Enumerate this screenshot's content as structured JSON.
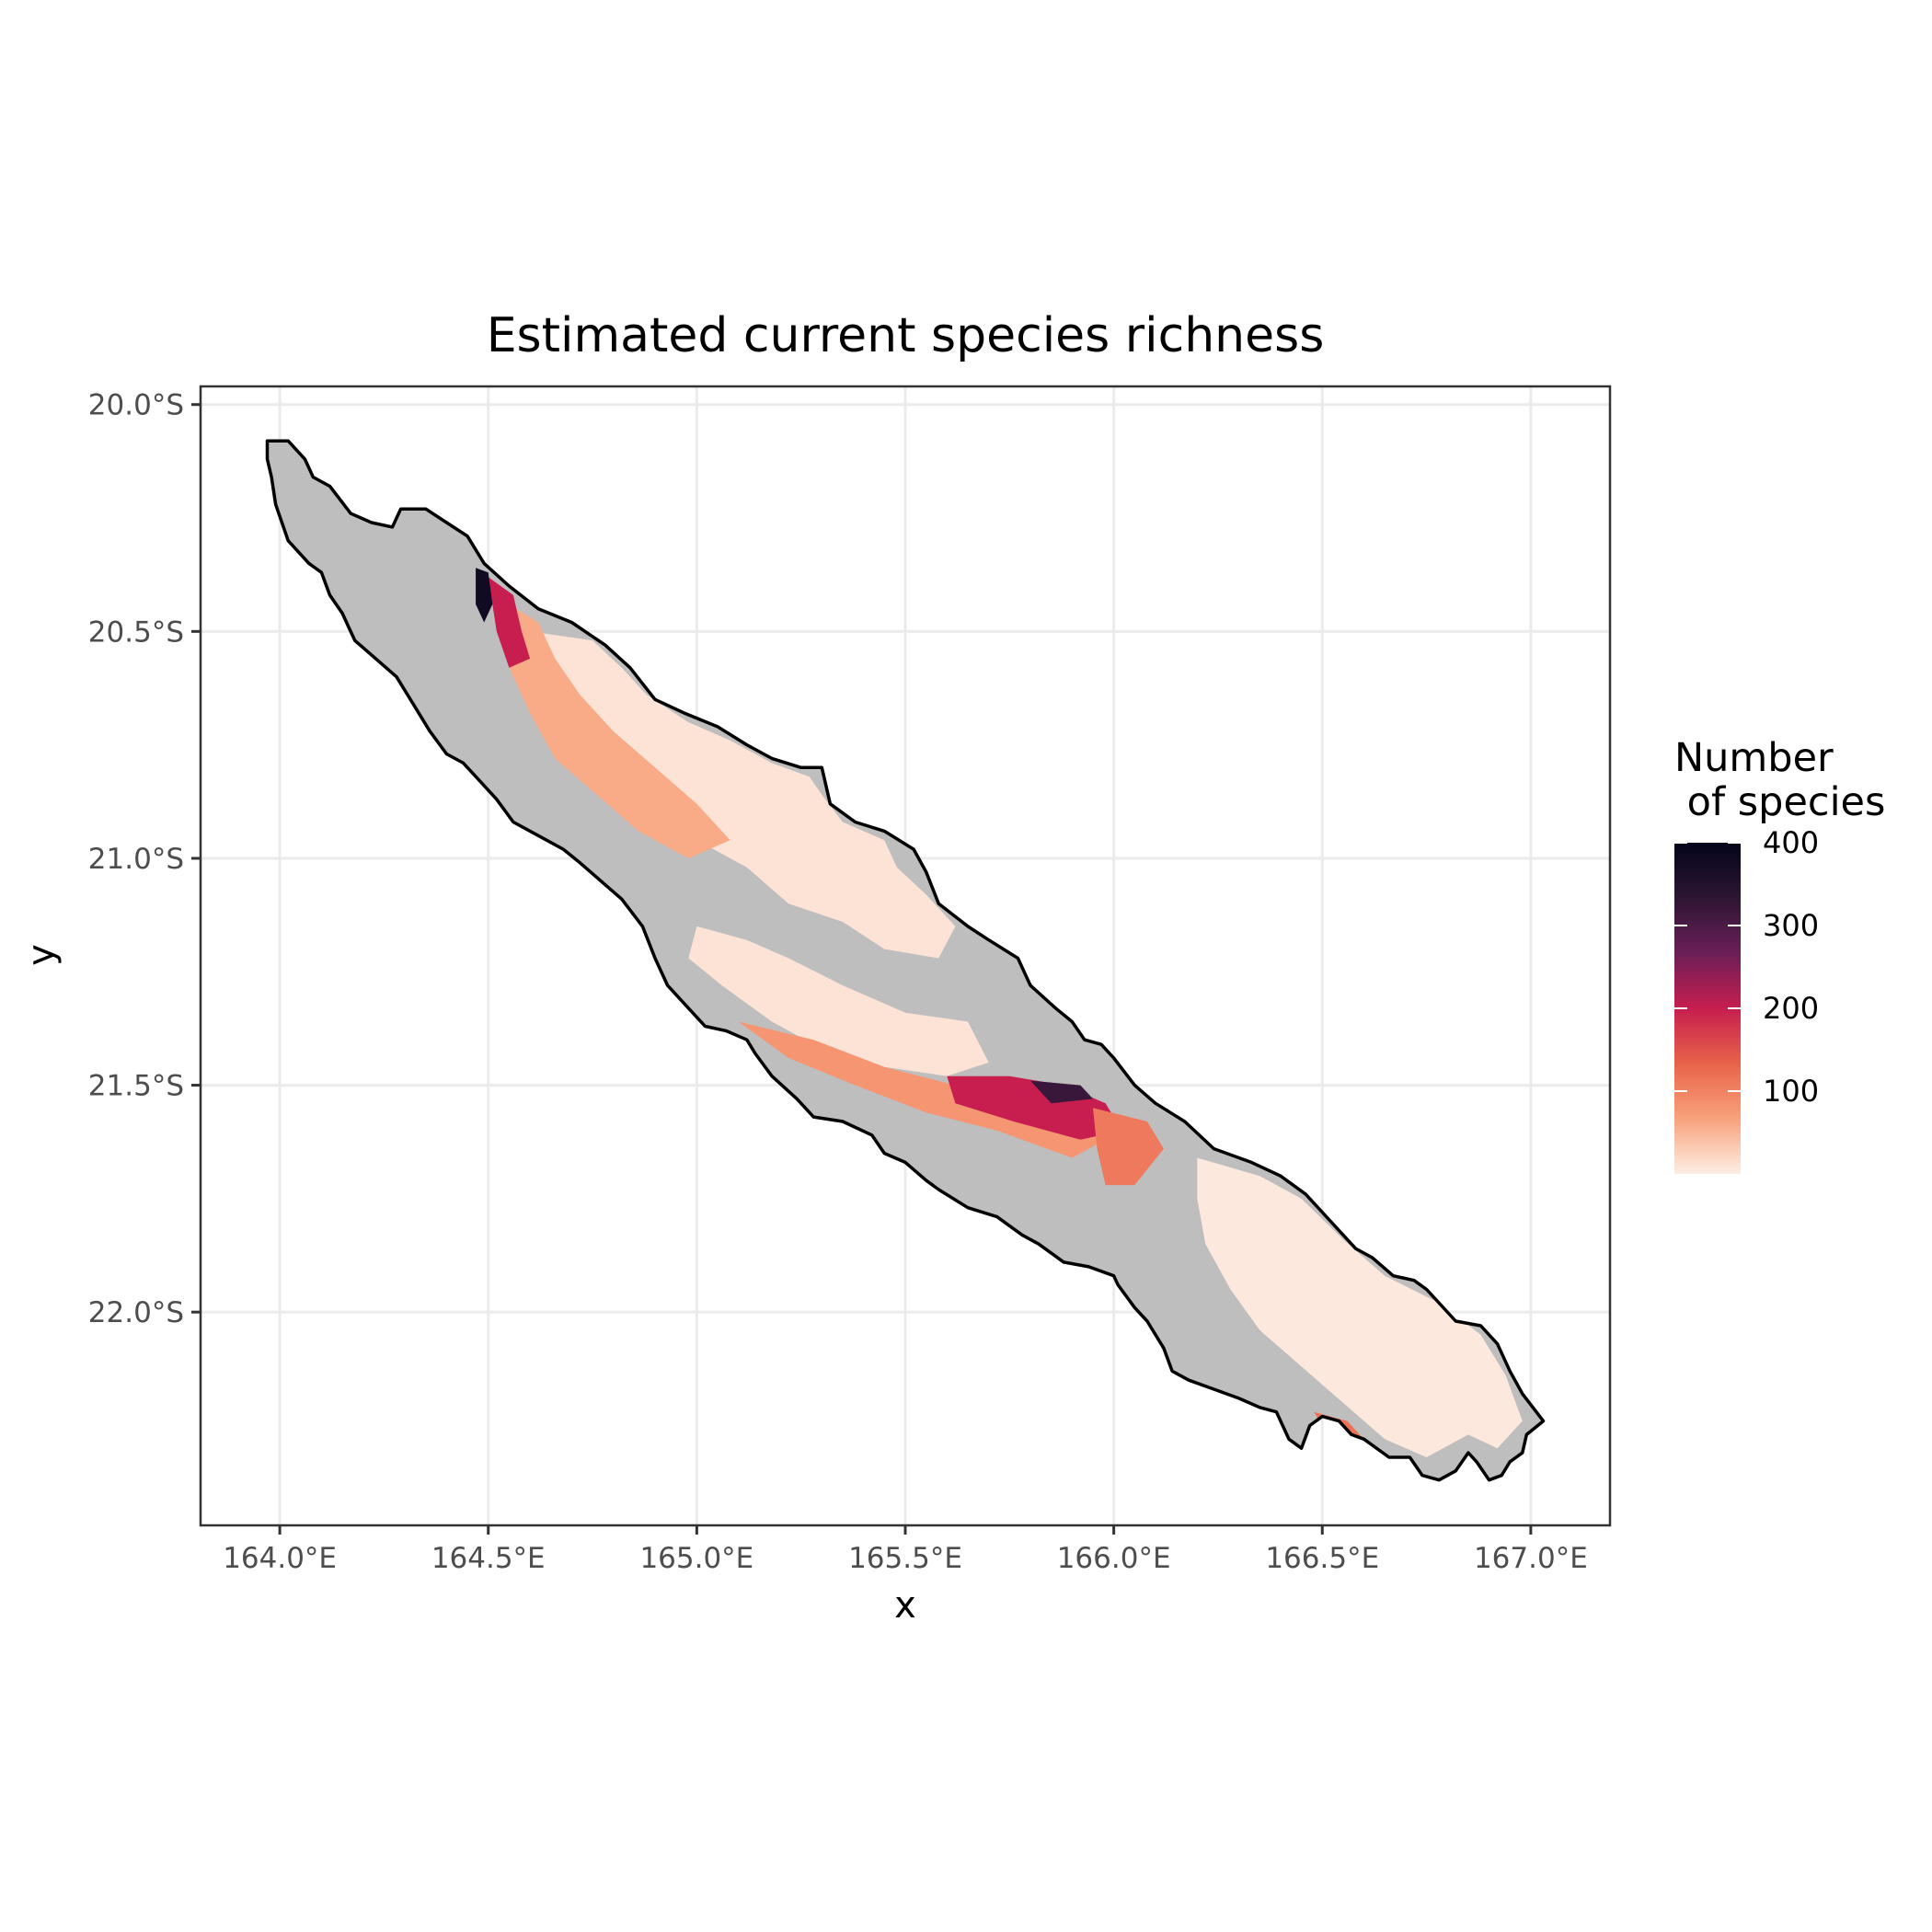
{
  "map": {
    "title": "Estimated current species richness",
    "xlabel": "x",
    "ylabel": "y",
    "x_ticks": [
      {
        "value": 164.0,
        "label": "164.0°E"
      },
      {
        "value": 164.5,
        "label": "164.5°E"
      },
      {
        "value": 165.0,
        "label": "165.0°E"
      },
      {
        "value": 165.5,
        "label": "165.5°E"
      },
      {
        "value": 166.0,
        "label": "166.0°E"
      },
      {
        "value": 166.5,
        "label": "166.5°E"
      },
      {
        "value": 167.0,
        "label": "167.0°E"
      }
    ],
    "y_ticks": [
      {
        "value": -20.0,
        "label": "20.0°S"
      },
      {
        "value": -20.5,
        "label": "20.5°S"
      },
      {
        "value": -21.0,
        "label": "21.0°S"
      },
      {
        "value": -21.5,
        "label": "21.5°S"
      },
      {
        "value": -22.0,
        "label": "22.0°S"
      }
    ],
    "xlim": [
      163.81,
      167.19
    ],
    "ylim": [
      -22.47,
      -19.96
    ],
    "grid": true,
    "no_data_color": "#bebebe",
    "outline_color": "#000000",
    "legend": {
      "title_line1": "Number",
      "title_line2": " of species",
      "position": "right",
      "range": [
        0,
        400
      ],
      "ticks": [
        {
          "value": 400,
          "label": "400"
        },
        {
          "value": 300,
          "label": "300"
        },
        {
          "value": 200,
          "label": "200"
        },
        {
          "value": 100,
          "label": "100"
        }
      ],
      "gradient_colors": [
        "#fdeee5",
        "#f8a27c",
        "#e8634a",
        "#c71e4f",
        "#6b1f57",
        "#2d1533",
        "#03051a"
      ]
    },
    "outline": [
      [
        163.97,
        -20.08
      ],
      [
        164.02,
        -20.08
      ],
      [
        164.06,
        -20.12
      ],
      [
        164.08,
        -20.16
      ],
      [
        164.12,
        -20.18
      ],
      [
        164.17,
        -20.24
      ],
      [
        164.22,
        -20.26
      ],
      [
        164.27,
        -20.27
      ],
      [
        164.29,
        -20.23
      ],
      [
        164.35,
        -20.23
      ],
      [
        164.4,
        -20.26
      ],
      [
        164.45,
        -20.29
      ],
      [
        164.49,
        -20.35
      ],
      [
        164.55,
        -20.4
      ],
      [
        164.62,
        -20.45
      ],
      [
        164.7,
        -20.48
      ],
      [
        164.78,
        -20.53
      ],
      [
        164.84,
        -20.58
      ],
      [
        164.9,
        -20.65
      ],
      [
        164.97,
        -20.68
      ],
      [
        165.05,
        -20.71
      ],
      [
        165.12,
        -20.75
      ],
      [
        165.18,
        -20.78
      ],
      [
        165.25,
        -20.8
      ],
      [
        165.3,
        -20.8
      ],
      [
        165.32,
        -20.88
      ],
      [
        165.38,
        -20.92
      ],
      [
        165.45,
        -20.94
      ],
      [
        165.52,
        -20.98
      ],
      [
        165.55,
        -21.03
      ],
      [
        165.58,
        -21.1
      ],
      [
        165.65,
        -21.15
      ],
      [
        165.7,
        -21.18
      ],
      [
        165.77,
        -21.22
      ],
      [
        165.8,
        -21.28
      ],
      [
        165.86,
        -21.33
      ],
      [
        165.9,
        -21.36
      ],
      [
        165.93,
        -21.4
      ],
      [
        165.97,
        -21.41
      ],
      [
        166.0,
        -21.44
      ],
      [
        166.05,
        -21.5
      ],
      [
        166.1,
        -21.54
      ],
      [
        166.17,
        -21.58
      ],
      [
        166.24,
        -21.64
      ],
      [
        166.33,
        -21.67
      ],
      [
        166.4,
        -21.7
      ],
      [
        166.43,
        -21.72
      ],
      [
        166.46,
        -21.74
      ],
      [
        166.52,
        -21.8
      ],
      [
        166.58,
        -21.86
      ],
      [
        166.62,
        -21.88
      ],
      [
        166.67,
        -21.92
      ],
      [
        166.72,
        -21.93
      ],
      [
        166.75,
        -21.95
      ],
      [
        166.82,
        -22.02
      ],
      [
        166.88,
        -22.03
      ],
      [
        166.92,
        -22.07
      ],
      [
        166.95,
        -22.13
      ],
      [
        166.98,
        -22.18
      ],
      [
        167.03,
        -22.24
      ],
      [
        166.99,
        -22.27
      ],
      [
        166.98,
        -22.31
      ],
      [
        166.95,
        -22.33
      ],
      [
        166.93,
        -22.36
      ],
      [
        166.9,
        -22.37
      ],
      [
        166.87,
        -22.33
      ],
      [
        166.85,
        -22.31
      ],
      [
        166.82,
        -22.35
      ],
      [
        166.78,
        -22.37
      ],
      [
        166.74,
        -22.36
      ],
      [
        166.71,
        -22.32
      ],
      [
        166.66,
        -22.32
      ],
      [
        166.6,
        -22.28
      ],
      [
        166.57,
        -22.27
      ],
      [
        166.54,
        -22.24
      ],
      [
        166.5,
        -22.23
      ],
      [
        166.47,
        -22.25
      ],
      [
        166.45,
        -22.3
      ],
      [
        166.42,
        -22.28
      ],
      [
        166.39,
        -22.22
      ],
      [
        166.35,
        -22.21
      ],
      [
        166.3,
        -22.19
      ],
      [
        166.24,
        -22.17
      ],
      [
        166.18,
        -22.15
      ],
      [
        166.14,
        -22.13
      ],
      [
        166.12,
        -22.08
      ],
      [
        166.08,
        -22.02
      ],
      [
        166.05,
        -21.99
      ],
      [
        166.01,
        -21.94
      ],
      [
        166.0,
        -21.92
      ],
      [
        165.94,
        -21.9
      ],
      [
        165.88,
        -21.89
      ],
      [
        165.82,
        -21.85
      ],
      [
        165.78,
        -21.83
      ],
      [
        165.72,
        -21.79
      ],
      [
        165.65,
        -21.77
      ],
      [
        165.58,
        -21.73
      ],
      [
        165.55,
        -21.71
      ],
      [
        165.5,
        -21.67
      ],
      [
        165.45,
        -21.65
      ],
      [
        165.42,
        -21.61
      ],
      [
        165.35,
        -21.58
      ],
      [
        165.28,
        -21.57
      ],
      [
        165.24,
        -21.53
      ],
      [
        165.18,
        -21.48
      ],
      [
        165.14,
        -21.43
      ],
      [
        165.12,
        -21.4
      ],
      [
        165.07,
        -21.38
      ],
      [
        165.02,
        -21.37
      ],
      [
        164.96,
        -21.31
      ],
      [
        164.93,
        -21.28
      ],
      [
        164.9,
        -21.22
      ],
      [
        164.87,
        -21.15
      ],
      [
        164.82,
        -21.09
      ],
      [
        164.77,
        -21.05
      ],
      [
        164.72,
        -21.01
      ],
      [
        164.68,
        -20.98
      ],
      [
        164.62,
        -20.95
      ],
      [
        164.56,
        -20.92
      ],
      [
        164.52,
        -20.87
      ],
      [
        164.48,
        -20.83
      ],
      [
        164.44,
        -20.79
      ],
      [
        164.4,
        -20.77
      ],
      [
        164.36,
        -20.72
      ],
      [
        164.32,
        -20.66
      ],
      [
        164.28,
        -20.6
      ],
      [
        164.23,
        -20.56
      ],
      [
        164.18,
        -20.52
      ],
      [
        164.15,
        -20.46
      ],
      [
        164.12,
        -20.42
      ],
      [
        164.1,
        -20.37
      ],
      [
        164.07,
        -20.35
      ],
      [
        164.02,
        -20.3
      ],
      [
        163.99,
        -20.22
      ],
      [
        163.98,
        -20.16
      ],
      [
        163.97,
        -20.12
      ]
    ],
    "richness_zones": [
      {
        "value": 10,
        "pts": [
          [
            164.75,
            -20.52
          ],
          [
            164.82,
            -20.58
          ],
          [
            164.88,
            -20.64
          ],
          [
            164.98,
            -20.7
          ],
          [
            165.08,
            -20.74
          ],
          [
            165.18,
            -20.79
          ],
          [
            165.27,
            -20.82
          ],
          [
            165.3,
            -20.86
          ],
          [
            165.35,
            -20.92
          ],
          [
            165.45,
            -20.96
          ],
          [
            165.48,
            -21.02
          ],
          [
            165.55,
            -21.08
          ],
          [
            165.62,
            -21.15
          ],
          [
            165.58,
            -21.22
          ],
          [
            165.45,
            -21.2
          ],
          [
            165.35,
            -21.14
          ],
          [
            165.22,
            -21.1
          ],
          [
            165.12,
            -21.02
          ],
          [
            165.0,
            -20.96
          ],
          [
            164.9,
            -20.88
          ],
          [
            164.8,
            -20.78
          ],
          [
            164.7,
            -20.68
          ],
          [
            164.62,
            -20.58
          ],
          [
            164.6,
            -20.5
          ]
        ]
      },
      {
        "value": 60,
        "pts": [
          [
            164.55,
            -20.44
          ],
          [
            164.62,
            -20.48
          ],
          [
            164.66,
            -20.56
          ],
          [
            164.72,
            -20.64
          ],
          [
            164.8,
            -20.72
          ],
          [
            164.9,
            -20.8
          ],
          [
            165.0,
            -20.88
          ],
          [
            165.08,
            -20.96
          ],
          [
            164.98,
            -21.0
          ],
          [
            164.86,
            -20.94
          ],
          [
            164.76,
            -20.86
          ],
          [
            164.66,
            -20.78
          ],
          [
            164.6,
            -20.68
          ],
          [
            164.55,
            -20.58
          ]
        ]
      },
      {
        "value": 200,
        "pts": [
          [
            164.5,
            -20.38
          ],
          [
            164.56,
            -20.42
          ],
          [
            164.58,
            -20.5
          ],
          [
            164.6,
            -20.56
          ],
          [
            164.55,
            -20.58
          ],
          [
            164.52,
            -20.5
          ]
        ]
      },
      {
        "value": 380,
        "pts": [
          [
            164.47,
            -20.36
          ],
          [
            164.5,
            -20.37
          ],
          [
            164.51,
            -20.44
          ],
          [
            164.49,
            -20.48
          ],
          [
            164.47,
            -20.44
          ]
        ]
      },
      {
        "value": 10,
        "pts": [
          [
            165.0,
            -21.15
          ],
          [
            165.12,
            -21.18
          ],
          [
            165.22,
            -21.22
          ],
          [
            165.35,
            -21.28
          ],
          [
            165.5,
            -21.34
          ],
          [
            165.65,
            -21.36
          ],
          [
            165.7,
            -21.45
          ],
          [
            165.6,
            -21.48
          ],
          [
            165.45,
            -21.46
          ],
          [
            165.3,
            -21.42
          ],
          [
            165.18,
            -21.36
          ],
          [
            165.06,
            -21.28
          ],
          [
            164.98,
            -21.22
          ]
        ]
      },
      {
        "value": 80,
        "pts": [
          [
            165.1,
            -21.36
          ],
          [
            165.28,
            -21.4
          ],
          [
            165.45,
            -21.46
          ],
          [
            165.62,
            -21.5
          ],
          [
            165.78,
            -21.52
          ],
          [
            165.92,
            -21.56
          ],
          [
            165.98,
            -21.62
          ],
          [
            165.9,
            -21.66
          ],
          [
            165.72,
            -21.6
          ],
          [
            165.55,
            -21.56
          ],
          [
            165.38,
            -21.5
          ],
          [
            165.22,
            -21.44
          ]
        ]
      },
      {
        "value": 200,
        "pts": [
          [
            165.6,
            -21.48
          ],
          [
            165.75,
            -21.48
          ],
          [
            165.88,
            -21.5
          ],
          [
            165.98,
            -21.54
          ],
          [
            166.02,
            -21.6
          ],
          [
            165.92,
            -21.62
          ],
          [
            165.76,
            -21.58
          ],
          [
            165.62,
            -21.54
          ]
        ]
      },
      {
        "value": 320,
        "pts": [
          [
            165.8,
            -21.49
          ],
          [
            165.92,
            -21.5
          ],
          [
            165.95,
            -21.53
          ],
          [
            165.85,
            -21.54
          ]
        ]
      },
      {
        "value": 110,
        "pts": [
          [
            165.95,
            -21.55
          ],
          [
            166.08,
            -21.58
          ],
          [
            166.12,
            -21.64
          ],
          [
            166.05,
            -21.72
          ],
          [
            165.98,
            -21.72
          ],
          [
            165.96,
            -21.64
          ]
        ]
      },
      {
        "value": 5,
        "pts": [
          [
            166.2,
            -21.66
          ],
          [
            166.35,
            -21.7
          ],
          [
            166.45,
            -21.75
          ],
          [
            166.55,
            -21.84
          ],
          [
            166.65,
            -21.92
          ],
          [
            166.78,
            -21.98
          ],
          [
            166.88,
            -22.05
          ],
          [
            166.94,
            -22.14
          ],
          [
            166.98,
            -22.24
          ],
          [
            166.92,
            -22.3
          ],
          [
            166.85,
            -22.27
          ],
          [
            166.75,
            -22.32
          ],
          [
            166.65,
            -22.28
          ],
          [
            166.55,
            -22.2
          ],
          [
            166.45,
            -22.12
          ],
          [
            166.35,
            -22.04
          ],
          [
            166.28,
            -21.95
          ],
          [
            166.22,
            -21.85
          ],
          [
            166.2,
            -21.75
          ]
        ]
      },
      {
        "value": 120,
        "pts": [
          [
            166.48,
            -22.22
          ],
          [
            166.56,
            -22.24
          ],
          [
            166.62,
            -22.3
          ],
          [
            166.58,
            -22.32
          ],
          [
            166.52,
            -22.28
          ]
        ]
      }
    ]
  }
}
